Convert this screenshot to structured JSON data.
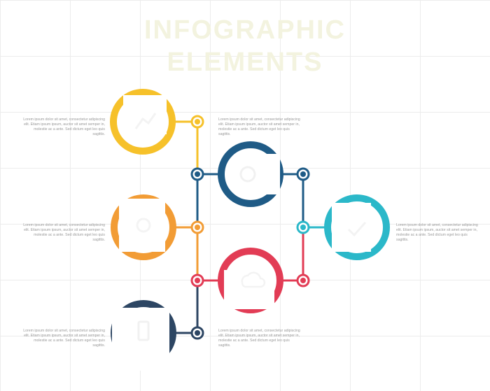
{
  "title": {
    "line1": "INFOGRAPHIC",
    "line2": "ELEMENTS"
  },
  "colors": {
    "yellow": "#f6c12a",
    "orange": "#f29c35",
    "red": "#e23c55",
    "blue": "#1f5b86",
    "teal": "#2bb8c9",
    "navy": "#2d4663",
    "grid": "#ececec",
    "text": "#9a9a9a"
  },
  "steps": [
    {
      "id": "yellow",
      "color_key": "yellow",
      "icon": "chart-icon",
      "text": "Lorem ipsum dolor sit amet, consectetur adipiscing elit. Etiam ipsum ipsum, auctor sit amet semper in, molestie ac a ante. Sed dictum eget leo quis sagittis."
    },
    {
      "id": "orange",
      "color_key": "orange",
      "icon": "gear-icon",
      "text": "Lorem ipsum dolor sit amet, consectetur adipiscing elit. Etiam ipsum ipsum, auctor sit amet semper in, molestie ac a ante. Sed dictum eget leo quis sagittis."
    },
    {
      "id": "navy",
      "color_key": "navy",
      "icon": "phone-icon",
      "text": "Lorem ipsum dolor sit amet, consectetur adipiscing elit. Etiam ipsum ipsum, auctor sit amet semper in, molestie ac a ante. Sed dictum eget leo quis sagittis."
    },
    {
      "id": "blue",
      "color_key": "blue",
      "icon": "target-icon",
      "text": "Lorem ipsum dolor sit amet, consectetur adipiscing elit. Etiam ipsum ipsum, auctor sit amet semper in, molestie ac a ante. Sed dictum eget leo quis sagittis."
    },
    {
      "id": "red",
      "color_key": "red",
      "icon": "cloud-icon",
      "text": "Lorem ipsum dolor sit amet, consectetur adipiscing elit. Etiam ipsum ipsum, auctor sit amet semper in, molestie ac a ante. Sed dictum eget leo quis sagittis."
    },
    {
      "id": "teal",
      "color_key": "teal",
      "icon": "check-icon",
      "text": "Lorem ipsum dolor sit amet, consectetur adipiscing elit. Etiam ipsum ipsum, auctor sit amet semper in, molestie ac a ante. Sed dictum eget leo quis sagittis."
    }
  ]
}
